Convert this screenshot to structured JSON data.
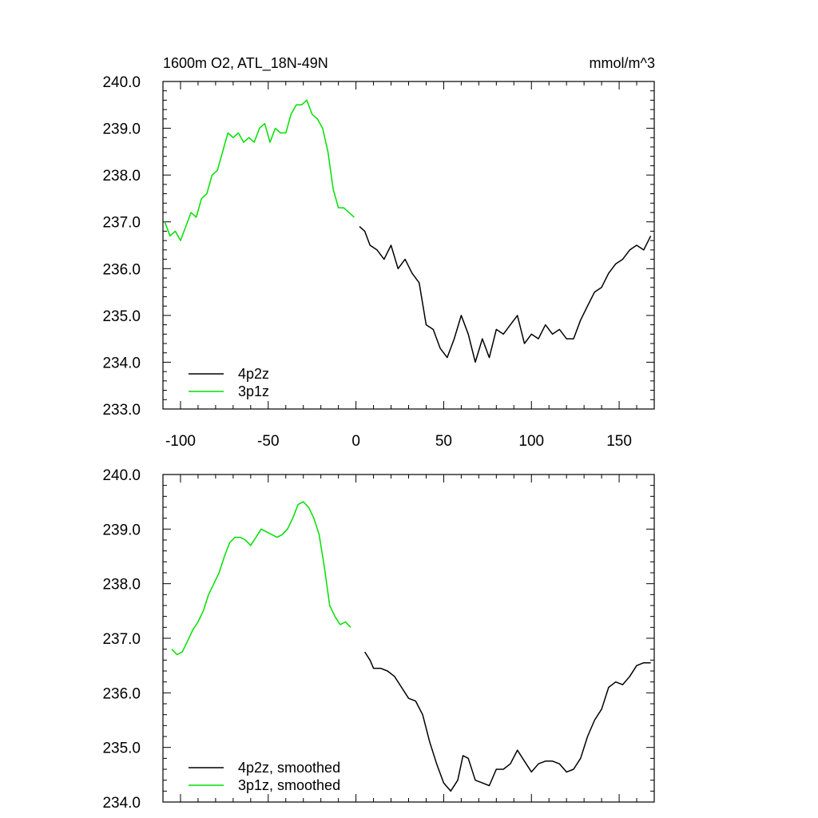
{
  "chart_data": [
    {
      "type": "line",
      "title": "1600m O2, ATL_18N-49N",
      "units": "mmol/m^3",
      "xlim": [
        -110,
        170
      ],
      "ylim": [
        233.0,
        240.0
      ],
      "x_ticks": [
        -100,
        -50,
        0,
        50,
        100,
        150
      ],
      "x_tick_labels": [
        "-100",
        "-50",
        "0",
        "50",
        "100",
        "150"
      ],
      "y_ticks": [
        233,
        234,
        235,
        236,
        237,
        238,
        239,
        240
      ],
      "y_tick_labels": [
        "233.0",
        "234.0",
        "235.0",
        "236.0",
        "237.0",
        "238.0",
        "239.0",
        "240.0"
      ],
      "legend_position": "bottom-left",
      "series": [
        {
          "name": "4p2z",
          "color": "#000000",
          "x": [
            2,
            5,
            8,
            12,
            16,
            20,
            24,
            28,
            32,
            36,
            40,
            44,
            48,
            52,
            56,
            60,
            64,
            68,
            72,
            76,
            80,
            84,
            88,
            92,
            96,
            100,
            104,
            108,
            112,
            116,
            120,
            124,
            128,
            132,
            136,
            140,
            144,
            148,
            152,
            156,
            160,
            164,
            168
          ],
          "y": [
            236.9,
            236.8,
            236.5,
            236.4,
            236.2,
            236.5,
            236.0,
            236.2,
            235.9,
            235.7,
            234.8,
            234.7,
            234.3,
            234.1,
            234.5,
            235.0,
            234.6,
            234.0,
            234.5,
            234.1,
            234.7,
            234.6,
            234.8,
            235.0,
            234.4,
            234.6,
            234.5,
            234.8,
            234.6,
            234.7,
            234.5,
            234.5,
            234.9,
            235.2,
            235.5,
            235.6,
            235.9,
            236.1,
            236.2,
            236.4,
            236.5,
            236.4,
            236.7
          ]
        },
        {
          "name": "3p1z",
          "color": "#00e000",
          "x": [
            -109,
            -106,
            -103,
            -100,
            -97,
            -94,
            -91,
            -88,
            -85,
            -82,
            -79,
            -76,
            -73,
            -70,
            -67,
            -64,
            -61,
            -58,
            -55,
            -52,
            -49,
            -46,
            -43,
            -40,
            -37,
            -34,
            -31,
            -28,
            -25,
            -22,
            -19,
            -16,
            -13,
            -10,
            -7,
            -4,
            -1
          ],
          "y": [
            237.0,
            236.7,
            236.8,
            236.6,
            236.9,
            237.2,
            237.1,
            237.5,
            237.6,
            238.0,
            238.1,
            238.5,
            238.9,
            238.8,
            238.9,
            238.7,
            238.8,
            238.7,
            239.0,
            239.1,
            238.7,
            239.0,
            238.9,
            238.9,
            239.3,
            239.5,
            239.5,
            239.6,
            239.3,
            239.2,
            239.0,
            238.5,
            237.7,
            237.3,
            237.3,
            237.2,
            237.1
          ]
        }
      ]
    },
    {
      "type": "line",
      "xlim": [
        -110,
        170
      ],
      "ylim": [
        234.0,
        240.0
      ],
      "x_ticks": [
        -100,
        -50,
        0,
        50,
        100,
        150
      ],
      "y_ticks": [
        234,
        235,
        236,
        237,
        238,
        239,
        240
      ],
      "y_tick_labels": [
        "234.0",
        "235.0",
        "236.0",
        "237.0",
        "238.0",
        "239.0",
        "240.0"
      ],
      "legend_position": "bottom-left",
      "series": [
        {
          "name": "4p2z, smoothed",
          "color": "#000000",
          "x": [
            5,
            8,
            10,
            14,
            18,
            22,
            26,
            30,
            34,
            38,
            42,
            46,
            50,
            54,
            58,
            61,
            64,
            68,
            72,
            76,
            80,
            84,
            88,
            92,
            96,
            100,
            104,
            108,
            112,
            116,
            120,
            124,
            128,
            132,
            136,
            140,
            144,
            148,
            152,
            156,
            160,
            164,
            168
          ],
          "y": [
            236.75,
            236.6,
            236.45,
            236.45,
            236.4,
            236.3,
            236.1,
            235.9,
            235.85,
            235.6,
            235.1,
            234.7,
            234.35,
            234.2,
            234.4,
            234.85,
            234.8,
            234.4,
            234.35,
            234.3,
            234.6,
            234.6,
            234.7,
            234.95,
            234.75,
            234.55,
            234.7,
            234.75,
            234.75,
            234.7,
            234.55,
            234.6,
            234.8,
            235.2,
            235.5,
            235.7,
            236.1,
            236.2,
            236.15,
            236.3,
            236.5,
            236.55,
            236.55
          ]
        },
        {
          "name": "3p1z, smoothed",
          "color": "#00e000",
          "x": [
            -105,
            -102,
            -99,
            -96,
            -93,
            -90,
            -87,
            -84,
            -81,
            -78,
            -75,
            -72,
            -69,
            -66,
            -63,
            -60,
            -57,
            -54,
            -51,
            -48,
            -45,
            -42,
            -39,
            -36,
            -33,
            -30,
            -27,
            -24,
            -21,
            -18,
            -15,
            -12,
            -9,
            -6,
            -3
          ],
          "y": [
            236.8,
            236.7,
            236.75,
            236.95,
            237.15,
            237.3,
            237.5,
            237.8,
            238.0,
            238.2,
            238.5,
            238.75,
            238.85,
            238.85,
            238.8,
            238.7,
            238.85,
            239.0,
            238.95,
            238.9,
            238.85,
            238.9,
            239.0,
            239.2,
            239.45,
            239.5,
            239.4,
            239.2,
            238.9,
            238.3,
            237.6,
            237.4,
            237.25,
            237.3,
            237.2
          ]
        }
      ]
    }
  ]
}
